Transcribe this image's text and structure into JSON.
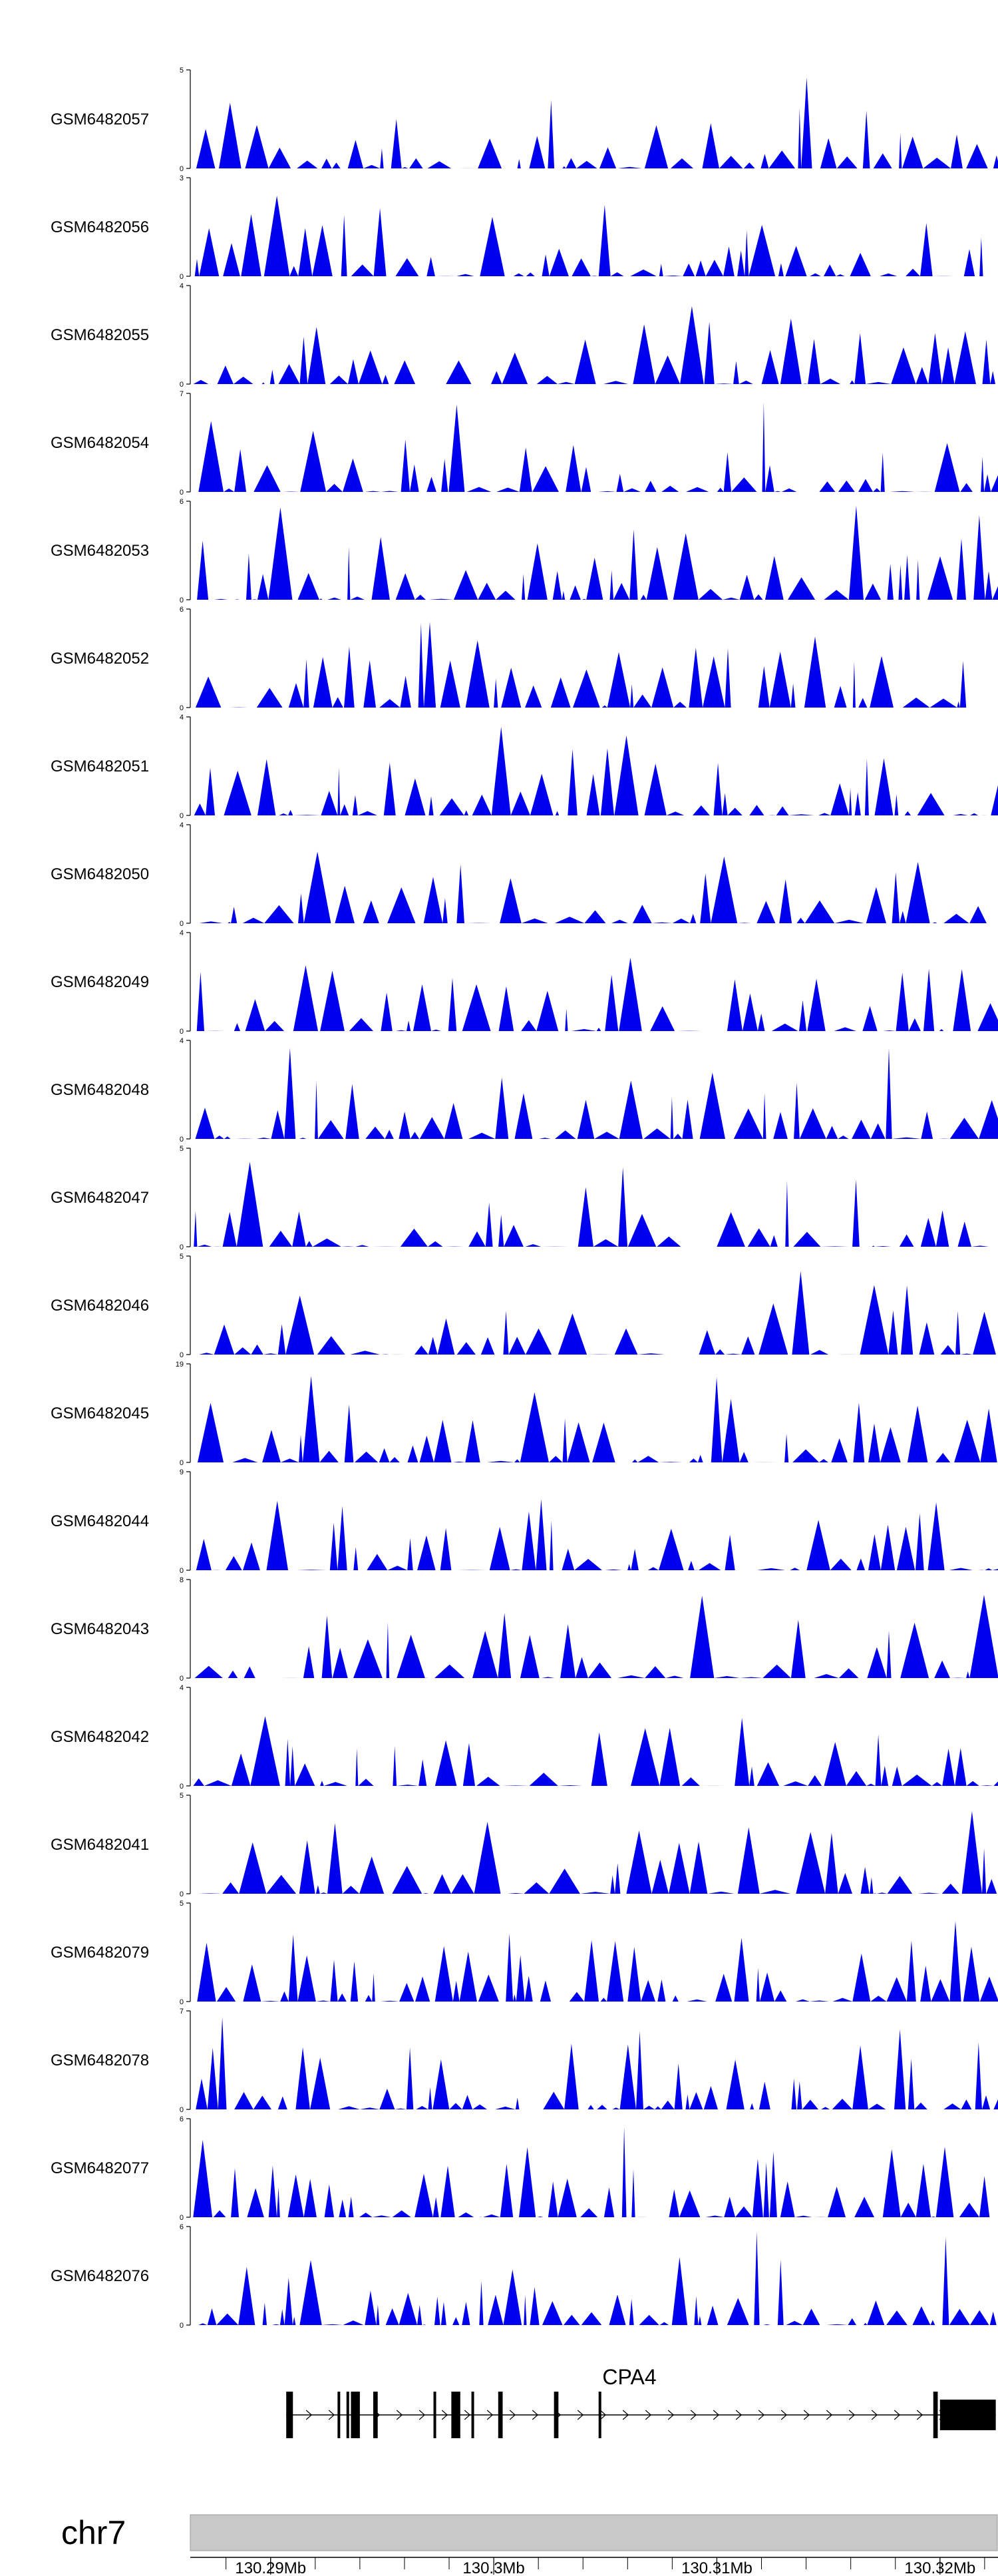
{
  "chart_data": {
    "type": "area",
    "title": "",
    "series_color": "#0000ee",
    "tracks": [
      {
        "name": "GSM6482057",
        "ymin": 0,
        "ymax": 5,
        "seed": 57
      },
      {
        "name": "GSM6482056",
        "ymin": 0,
        "ymax": 3,
        "seed": 56
      },
      {
        "name": "GSM6482055",
        "ymin": 0,
        "ymax": 4,
        "seed": 55
      },
      {
        "name": "GSM6482054",
        "ymin": 0,
        "ymax": 7,
        "seed": 54
      },
      {
        "name": "GSM6482053",
        "ymin": 0,
        "ymax": 6,
        "seed": 53
      },
      {
        "name": "GSM6482052",
        "ymin": 0,
        "ymax": 6,
        "seed": 52
      },
      {
        "name": "GSM6482051",
        "ymin": 0,
        "ymax": 4,
        "seed": 51
      },
      {
        "name": "GSM6482050",
        "ymin": 0,
        "ymax": 4,
        "seed": 50
      },
      {
        "name": "GSM6482049",
        "ymin": 0,
        "ymax": 4,
        "seed": 49
      },
      {
        "name": "GSM6482048",
        "ymin": 0,
        "ymax": 4,
        "seed": 48
      },
      {
        "name": "GSM6482047",
        "ymin": 0,
        "ymax": 5,
        "seed": 47
      },
      {
        "name": "GSM6482046",
        "ymin": 0,
        "ymax": 5,
        "seed": 46
      },
      {
        "name": "GSM6482045",
        "ymin": 0,
        "ymax": 19,
        "seed": 45
      },
      {
        "name": "GSM6482044",
        "ymin": 0,
        "ymax": 9,
        "seed": 44
      },
      {
        "name": "GSM6482043",
        "ymin": 0,
        "ymax": 8,
        "seed": 43
      },
      {
        "name": "GSM6482042",
        "ymin": 0,
        "ymax": 4,
        "seed": 42
      },
      {
        "name": "GSM6482041",
        "ymin": 0,
        "ymax": 5,
        "seed": 41
      },
      {
        "name": "GSM6482079",
        "ymin": 0,
        "ymax": 5,
        "seed": 79
      },
      {
        "name": "GSM6482078",
        "ymin": 0,
        "ymax": 7,
        "seed": 78
      },
      {
        "name": "GSM6482077",
        "ymin": 0,
        "ymax": 6,
        "seed": 77
      },
      {
        "name": "GSM6482076",
        "ymin": 0,
        "ymax": 6,
        "seed": 76
      }
    ],
    "x_range_mb": [
      130.2864,
      130.3226
    ],
    "gene": {
      "name": "CPA4",
      "start_mb": 130.2907,
      "end_mb": 130.3225,
      "strand": "+",
      "exons_mb": [
        [
          130.2907,
          130.291
        ],
        [
          130.293,
          130.2931
        ],
        [
          130.2934,
          130.2935
        ],
        [
          130.2936,
          130.294
        ],
        [
          130.2946,
          130.2948
        ],
        [
          130.2973,
          130.2974
        ],
        [
          130.2981,
          130.2985
        ],
        [
          130.299,
          130.2991
        ],
        [
          130.3002,
          130.3004
        ],
        [
          130.3027,
          130.3029
        ],
        [
          130.3047,
          130.3048
        ],
        [
          130.3197,
          130.3199
        ],
        [
          130.32,
          130.3225
        ]
      ]
    },
    "chromosome": "chr7",
    "axis_ticks": [
      {
        "pos": 130.29,
        "label": "130.29Mb"
      },
      {
        "pos": 130.3,
        "label": "130.3Mb"
      },
      {
        "pos": 130.31,
        "label": "130.31Mb"
      },
      {
        "pos": 130.32,
        "label": "130.32Mb"
      }
    ],
    "minor_tick_step_mb": 0.002
  }
}
